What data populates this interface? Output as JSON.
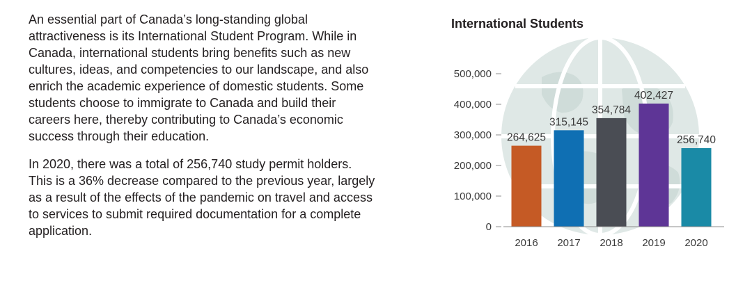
{
  "article": {
    "paragraphs": [
      "An essential part of Canada’s long-standing global attractiveness is its International Student Program. While in Canada, international students bring benefits such as new cultures, ideas, and competencies to our landscape, and also enrich the academic experience of domestic students. Some students choose to immigrate to Canada and build their careers here, thereby contributing to Canada’s economic success through their education.",
      "In 2020, there was a total of 256,740 study permit holders. This is a 36% decrease compared to the previous year, largely as a result of the effects of the pandemic on travel and access to services to submit required documentation for a complete application."
    ]
  },
  "chart_data": {
    "type": "bar",
    "title": "International Students",
    "xlabel": "",
    "ylabel": "",
    "categories": [
      "2016",
      "2017",
      "2018",
      "2019",
      "2020"
    ],
    "values": [
      264625,
      315145,
      354784,
      402427,
      256740
    ],
    "value_labels": [
      "264,625",
      "315,145",
      "354,784",
      "402,427",
      "256,740"
    ],
    "bar_colors": [
      "#c55a25",
      "#0f6fb3",
      "#4a4d54",
      "#5e3596",
      "#1a8aa6"
    ],
    "ylim": [
      0,
      500000
    ],
    "yticks": [
      0,
      100000,
      200000,
      300000,
      400000,
      500000
    ],
    "ytick_labels": [
      "0",
      "100,000",
      "200,000",
      "300,000",
      "400,000",
      "500,000"
    ],
    "grid": false,
    "legend": "none",
    "background_graphic": "globe-icon"
  }
}
